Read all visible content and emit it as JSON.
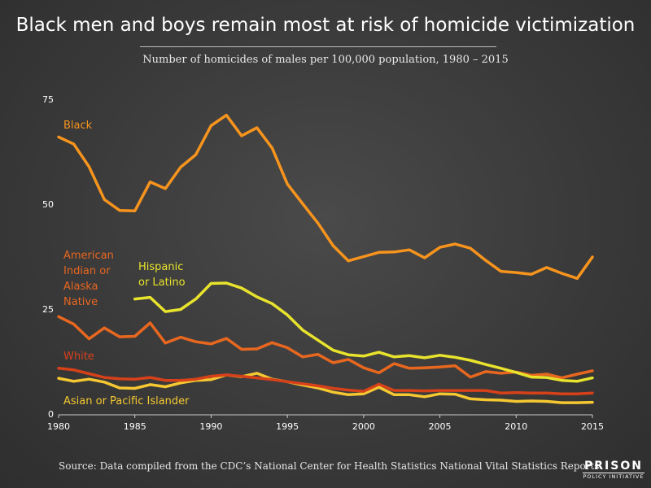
{
  "header": {
    "title": "Black men and boys remain most at risk of homicide victimization",
    "subtitle": "Number of homicides of males per 100,000 population, 1980 – 2015"
  },
  "footer": {
    "source": "Source: Data compiled from the CDC’s National Center for Health Statistics National Vital Statistics Reports",
    "logo_line1": "PRISON",
    "logo_line2": "POLICY INITIATIVE"
  },
  "colors": {
    "Black": "#f7941d",
    "Hispanic or Latino": "#e8e32c",
    "American Indian or Alaska Native": "#e8671f",
    "White": "#d6411a",
    "Asian or Pacific Islander": "#f5c832"
  },
  "chart_data": {
    "type": "line",
    "title": "",
    "xlabel": "",
    "ylabel": "",
    "xlim": [
      1980,
      2015
    ],
    "ylim": [
      0,
      75
    ],
    "x_ticks": [
      "1980",
      "1985",
      "1990",
      "1995",
      "2000",
      "2005",
      "2010",
      "2015"
    ],
    "y_ticks": [
      "0",
      "25",
      "50",
      "75"
    ],
    "grid": false,
    "legend": "inline labels",
    "series": [
      {
        "name": "Black",
        "label_lines": [
          "Black"
        ],
        "x": [
          1980,
          1981,
          1982,
          1983,
          1984,
          1985,
          1986,
          1987,
          1988,
          1989,
          1990,
          1991,
          1992,
          1993,
          1994,
          1995,
          1996,
          1997,
          1998,
          1999,
          2000,
          2001,
          2002,
          2003,
          2004,
          2005,
          2006,
          2007,
          2008,
          2009,
          2010,
          2011,
          2012,
          2013,
          2014,
          2015
        ],
        "y": [
          66,
          64.3,
          58.9,
          51.1,
          48.5,
          48.4,
          55.3,
          53.7,
          58.8,
          61.8,
          68.7,
          71.2,
          66.3,
          68.2,
          63.4,
          54.8,
          50.1,
          45.5,
          40.1,
          36.5,
          37.5,
          38.5,
          38.6,
          39.1,
          37.2,
          39.7,
          40.5,
          39.5,
          36.6,
          34,
          33.7,
          33.3,
          34.9,
          33.5,
          32.3,
          37.4
        ]
      },
      {
        "name": "Hispanic or Latino",
        "label_lines": [
          "Hispanic",
          "or Latino"
        ],
        "x": [
          1985,
          1986,
          1987,
          1988,
          1989,
          1990,
          1991,
          1992,
          1993,
          1994,
          1995,
          1996,
          1997,
          1998,
          1999,
          2000,
          2001,
          2002,
          2003,
          2004,
          2005,
          2006,
          2007,
          2008,
          2009,
          2010,
          2011,
          2012,
          2013,
          2014,
          2015
        ],
        "y": [
          27.4,
          27.8,
          24.4,
          24.9,
          27.4,
          31.1,
          31.2,
          30,
          27.9,
          26.3,
          23.6,
          20,
          17.6,
          15.2,
          14.1,
          13.8,
          14.7,
          13.6,
          13.9,
          13.4,
          14,
          13.5,
          12.8,
          11.8,
          10.9,
          9.9,
          8.8,
          8.7,
          8,
          7.8,
          8.6
        ]
      },
      {
        "name": "American Indian or Alaska Native",
        "label_lines": [
          "American",
          "Indian or",
          "Alaska",
          "Native"
        ],
        "x": [
          1980,
          1981,
          1982,
          1983,
          1984,
          1985,
          1986,
          1987,
          1988,
          1989,
          1990,
          1991,
          1992,
          1993,
          1994,
          1995,
          1996,
          1997,
          1998,
          1999,
          2000,
          2001,
          2002,
          2003,
          2004,
          2005,
          2006,
          2007,
          2008,
          2009,
          2010,
          2011,
          2012,
          2013,
          2014,
          2015
        ],
        "y": [
          23.2,
          21.4,
          17.9,
          20.5,
          18.4,
          18.5,
          21.7,
          16.9,
          18.3,
          17.2,
          16.7,
          18,
          15.4,
          15.5,
          17,
          15.8,
          13.6,
          14.2,
          12.2,
          13,
          11,
          9.8,
          12,
          10.9,
          11,
          11.2,
          11.5,
          8.8,
          10.1,
          9.7,
          10,
          9.2,
          9.5,
          8.6,
          9.5,
          10.3
        ]
      },
      {
        "name": "White",
        "label_lines": [
          "White"
        ],
        "x": [
          1980,
          1981,
          1982,
          1983,
          1984,
          1985,
          1986,
          1987,
          1988,
          1989,
          1990,
          1991,
          1992,
          1993,
          1994,
          1995,
          1996,
          1997,
          1998,
          1999,
          2000,
          2001,
          2002,
          2003,
          2004,
          2005,
          2006,
          2007,
          2008,
          2009,
          2010,
          2011,
          2012,
          2013,
          2014,
          2015
        ],
        "y": [
          10.9,
          10.5,
          9.6,
          8.7,
          8.4,
          8.3,
          8.7,
          8,
          8,
          8.3,
          9,
          9.3,
          9,
          8.6,
          8.2,
          7.7,
          7.2,
          6.7,
          6.1,
          5.7,
          5.4,
          7.1,
          5.6,
          5.6,
          5.5,
          5.6,
          5.6,
          5.6,
          5.6,
          5,
          5.1,
          5,
          5,
          4.8,
          4.8,
          5
        ]
      },
      {
        "name": "Asian or Pacific Islander",
        "label_lines": [
          "Asian or Pacific Islander"
        ],
        "x": [
          1980,
          1981,
          1982,
          1983,
          1984,
          1985,
          1986,
          1987,
          1988,
          1989,
          1990,
          1991,
          1992,
          1993,
          1994,
          1995,
          1996,
          1997,
          1998,
          1999,
          2000,
          2001,
          2002,
          2003,
          2004,
          2005,
          2006,
          2007,
          2008,
          2009,
          2010,
          2011,
          2012,
          2013,
          2014,
          2015
        ],
        "y": [
          8.5,
          7.8,
          8.3,
          7.6,
          6.2,
          6.1,
          7,
          6.5,
          7.4,
          8,
          8.2,
          9.3,
          8.9,
          9.7,
          8.3,
          7.7,
          6.9,
          6.2,
          5.2,
          4.6,
          4.8,
          6.4,
          4.6,
          4.6,
          4.1,
          4.8,
          4.7,
          3.6,
          3.4,
          3.3,
          3,
          3.1,
          3,
          2.7,
          2.7,
          2.8
        ]
      }
    ]
  }
}
